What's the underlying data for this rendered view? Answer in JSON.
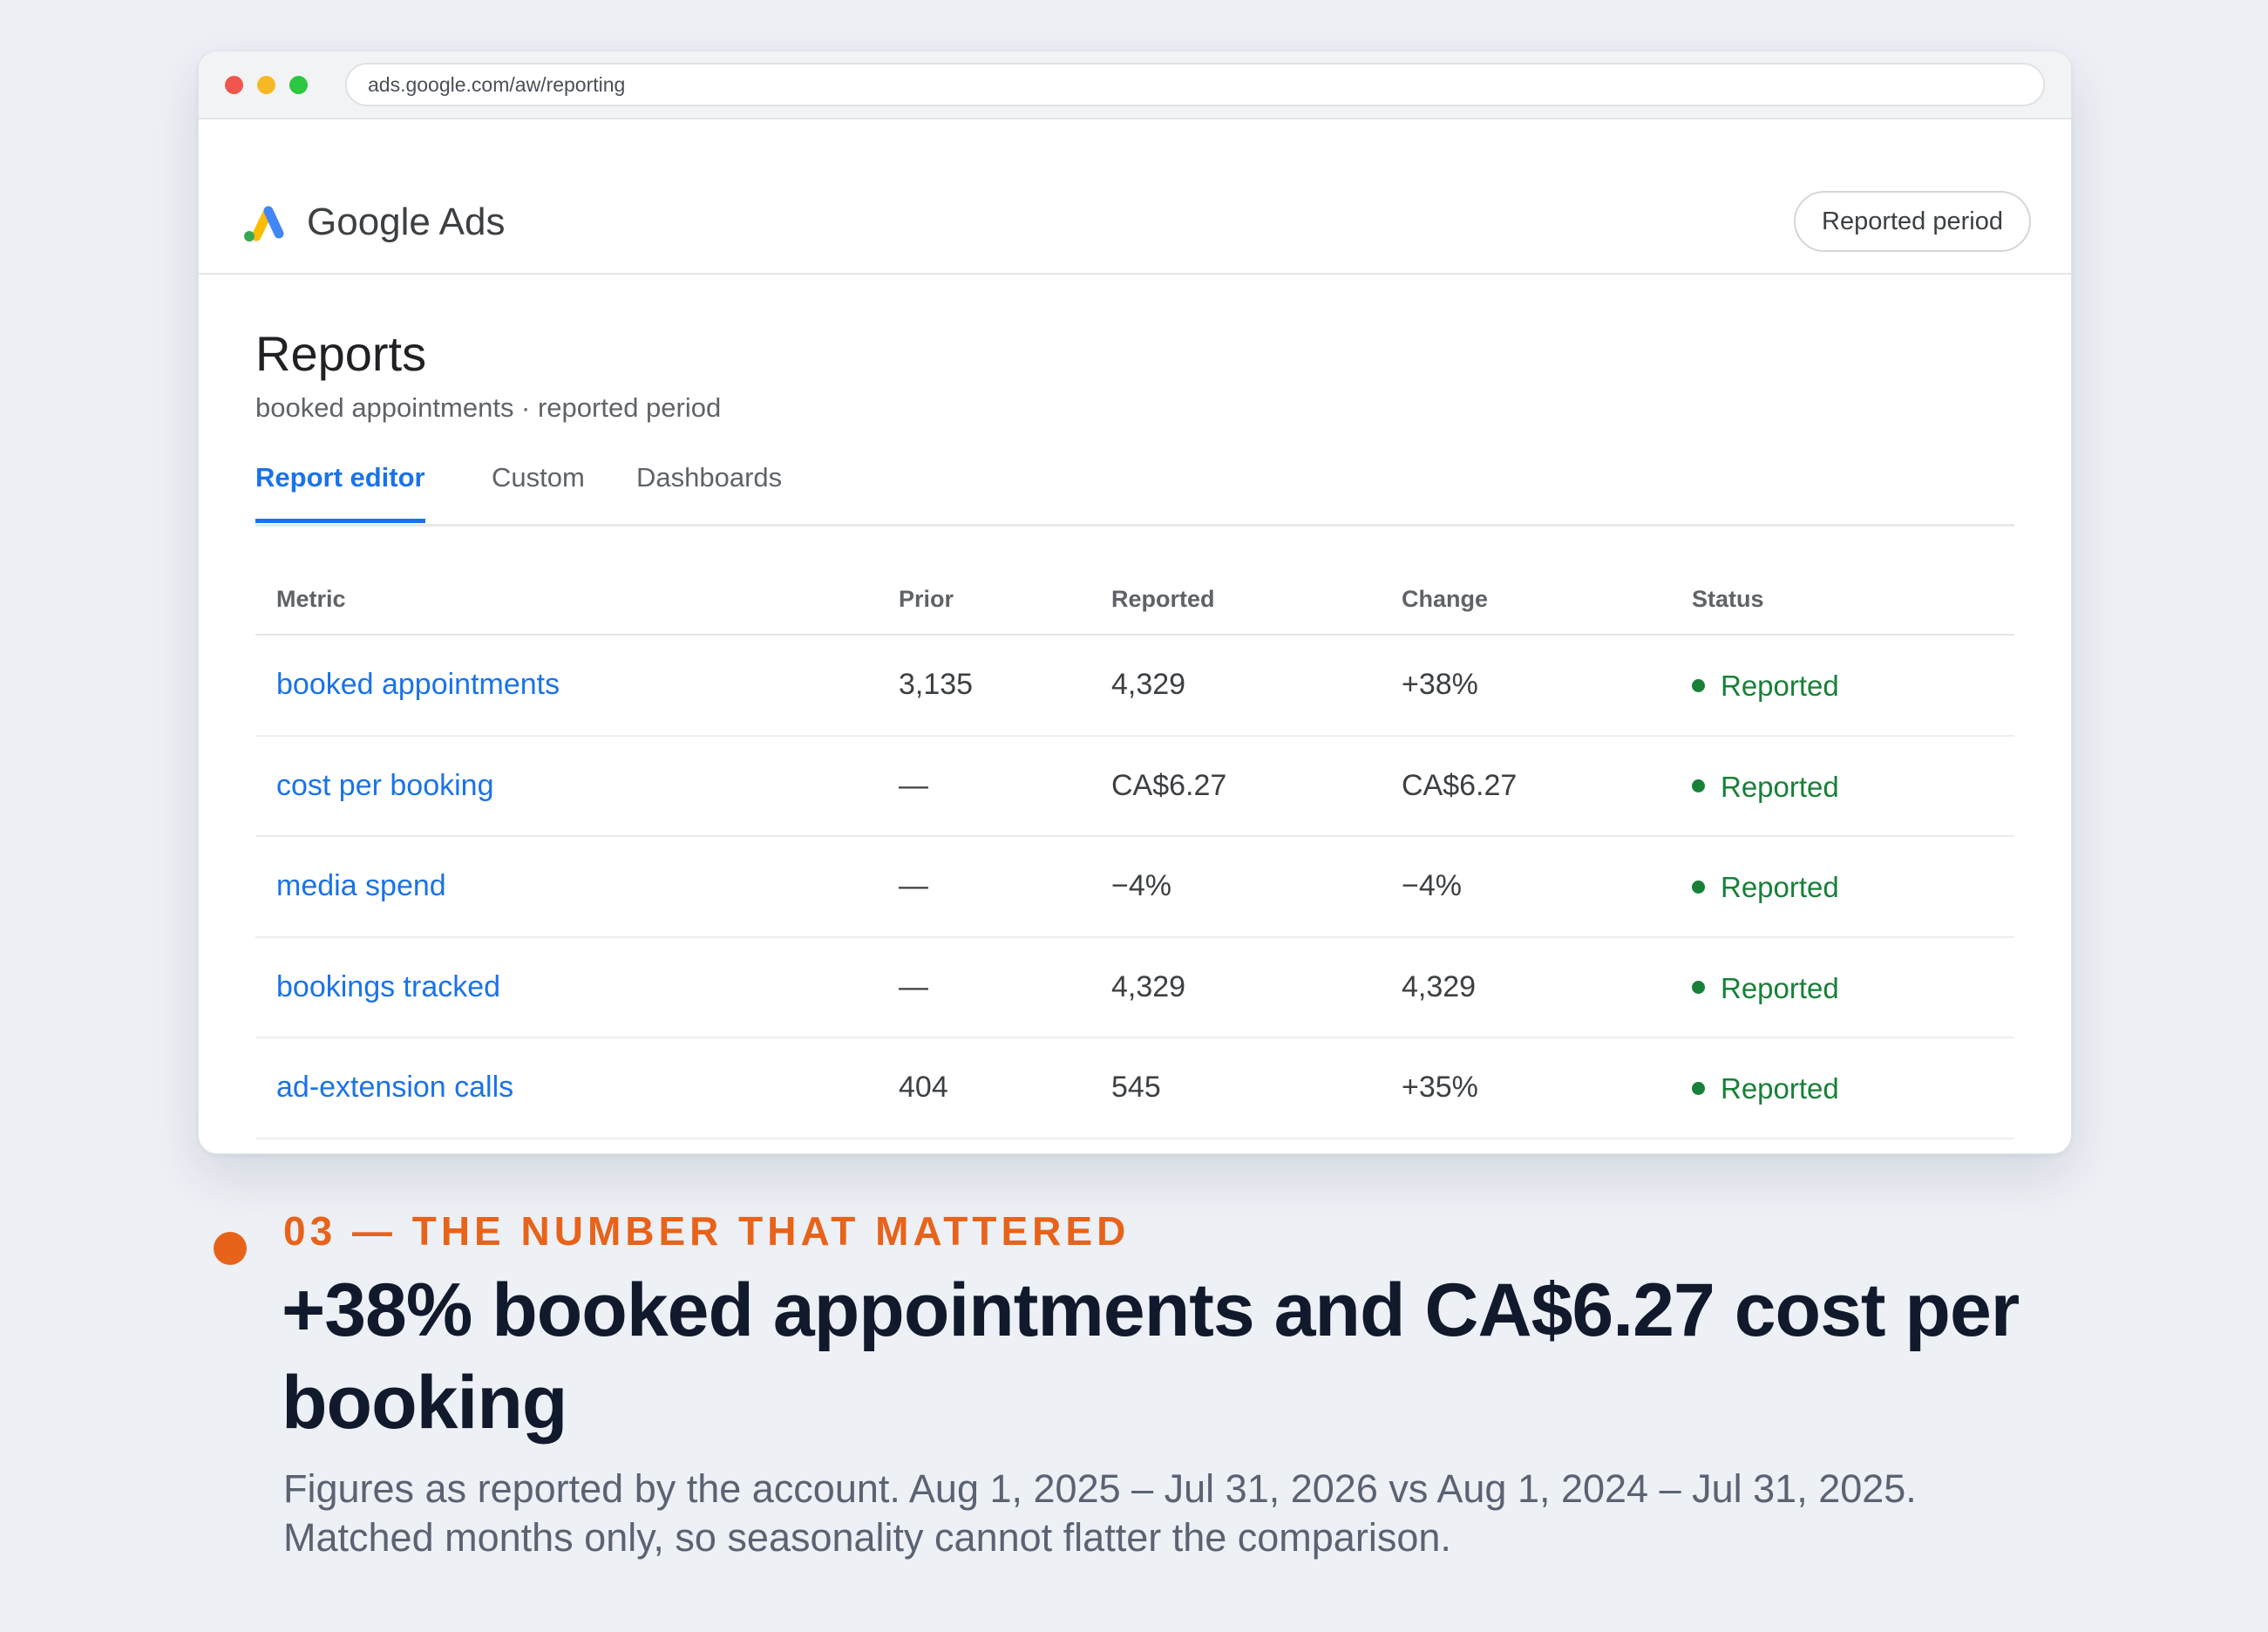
{
  "browser": {
    "url": "ads.google.com/aw/reporting"
  },
  "app": {
    "brand": "Google Ads",
    "period_button": "Reported period"
  },
  "page": {
    "title": "Reports",
    "subtitle": "booked appointments · reported period",
    "tabs": [
      {
        "label": "Report editor",
        "active": true
      },
      {
        "label": "Custom",
        "active": false
      },
      {
        "label": "Dashboards",
        "active": false
      }
    ]
  },
  "table": {
    "headers": [
      "Metric",
      "Prior",
      "Reported",
      "Change",
      "Status"
    ],
    "rows": [
      {
        "metric": "booked appointments",
        "prior": "3,135",
        "reported": "4,329",
        "change": "+38%",
        "status": "Reported"
      },
      {
        "metric": "cost per booking",
        "prior": "—",
        "reported": "CA$6.27",
        "change": "CA$6.27",
        "status": "Reported"
      },
      {
        "metric": "media spend",
        "prior": "—",
        "reported": "−4%",
        "change": "−4%",
        "status": "Reported"
      },
      {
        "metric": "bookings tracked",
        "prior": "—",
        "reported": "4,329",
        "change": "4,329",
        "status": "Reported"
      },
      {
        "metric": "ad-extension calls",
        "prior": "404",
        "reported": "545",
        "change": "+35%",
        "status": "Reported"
      }
    ]
  },
  "caption": {
    "eyebrow": "03 — THE NUMBER THAT MATTERED",
    "headline": "+38% booked appointments and CA$6.27 cost per booking",
    "note_line1": "Figures as reported by the account. Aug 1, 2025 – Jul 31, 2026 vs Aug 1, 2024 – Jul 31, 2025.",
    "note_line2": "Matched months only, so seasonality cannot flatter the comparison."
  },
  "colors": {
    "link": "#1a73e8",
    "status_ok": "#188038",
    "accent": "#e8631a",
    "headline": "#111a2c",
    "background": "#edf0f5"
  },
  "icons": {
    "window_controls": [
      "close-dot",
      "minimize-dot",
      "maximize-dot"
    ],
    "logo": "google-ads-logo-icon",
    "status": "status-dot-icon",
    "bullet": "bullet-dot-icon"
  }
}
